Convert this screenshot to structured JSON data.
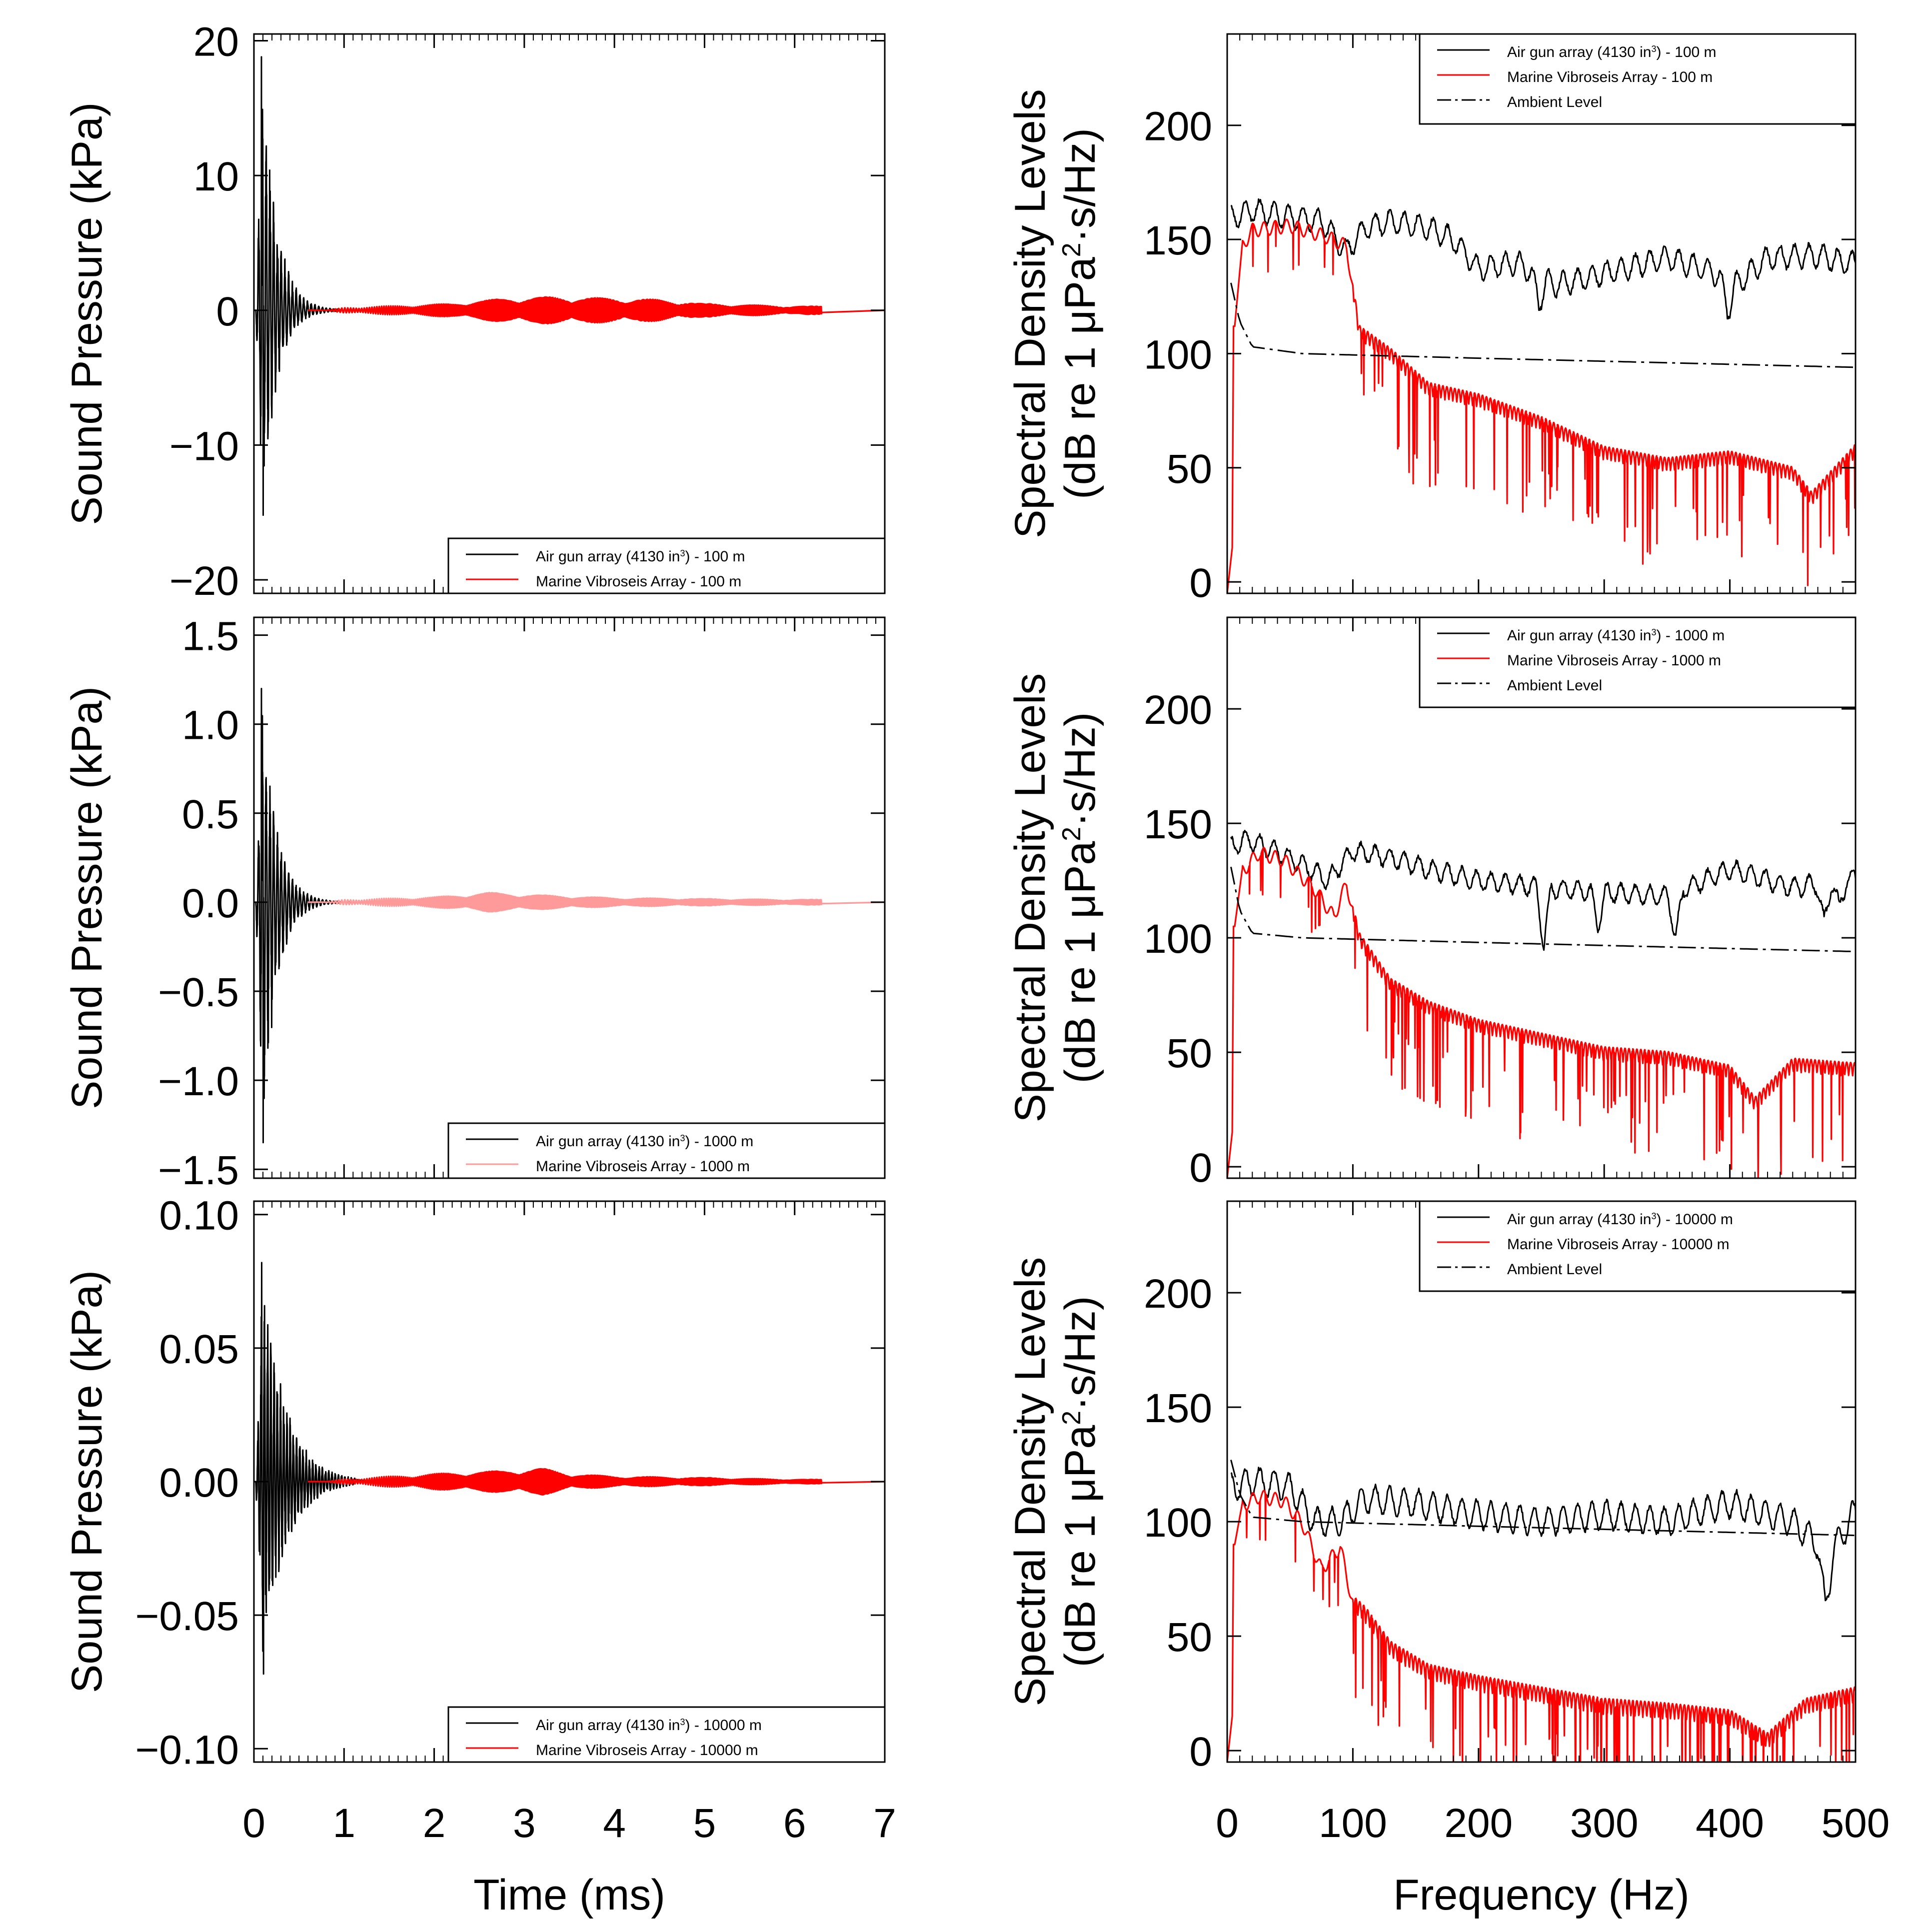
{
  "colors": {
    "airgun": "#000000",
    "vibroseis": "#ff0000",
    "vibroseis_light": "#ff9a9a",
    "ambient": "#000000",
    "frame": "#000000"
  },
  "chart_data": [
    {
      "type": "line",
      "id": "time-100m",
      "xlabel": "",
      "ylabel": "Sound Pressure (kPa)",
      "xlim": [
        0,
        7
      ],
      "ylim": [
        -21,
        20.5
      ],
      "yticks": [
        20,
        10,
        0,
        -10,
        -20
      ],
      "ytick_labels": [
        "20",
        "10",
        "0",
        "−10",
        "−20"
      ],
      "xticks": [
        0,
        1,
        2,
        3,
        4,
        5,
        6,
        7
      ],
      "xtick_labels": [],
      "legend_position": "bottom-right",
      "series": [
        {
          "name": "Air gun array (4130 in³) -   100 m",
          "label_main": "Air gun array (4130 in",
          "label_sup": "3",
          "label_tail": ") -   100 m",
          "color": "#000000",
          "kind": "airgun",
          "peak": 18.8,
          "trough": -15.2
        },
        {
          "name": "Marine Vibroseis Array -   100 m",
          "label_main": "Marine Vibroseis Array -   100 m",
          "color": "#ff0000",
          "kind": "vibro",
          "envelope": [
            [
              1.0,
              0.2
            ],
            [
              2.2,
              0.5
            ],
            [
              2.8,
              0.9
            ],
            [
              3.3,
              1.0
            ],
            [
              4.0,
              0.9
            ],
            [
              4.5,
              0.8
            ],
            [
              5.0,
              0.5
            ],
            [
              6.0,
              0.3
            ]
          ]
        }
      ]
    },
    {
      "type": "line",
      "id": "freq-100m",
      "xlabel": "",
      "ylabel_line1": "Spectral Density Levels",
      "ylabel_line2": "(dB re 1 μPa²·s/Hz)",
      "ylabel_main": "(dB re 1 μPa",
      "ylabel_sup": "2",
      "ylabel_tail": "·s/Hz)",
      "xlim": [
        0,
        500
      ],
      "ylim": [
        -5,
        240
      ],
      "yticks": [
        200,
        150,
        100,
        50,
        0
      ],
      "xticks": [
        0,
        100,
        200,
        300,
        400,
        500
      ],
      "xtick_labels": [],
      "legend_position": "top-right",
      "series": [
        {
          "name": "Air gun array (4130 in³) -   100 m",
          "label_main": "Air gun array (4130 in",
          "label_sup": "3",
          "label_tail": ") -   100 m",
          "color": "#000000",
          "kind": "airgun",
          "x": [
            5,
            20,
            50,
            75,
            95,
            110,
            130,
            160,
            180,
            200,
            230,
            260,
            300,
            350,
            390,
            400,
            430,
            470,
            500
          ],
          "y": [
            160,
            163,
            160,
            158,
            145,
            155,
            158,
            155,
            150,
            137,
            140,
            130,
            135,
            142,
            135,
            128,
            142,
            143,
            139
          ],
          "ripple": 5,
          "notches": [
            [
              248,
              12
            ],
            [
              398,
              10
            ]
          ]
        },
        {
          "name": "Marine Vibroseis Array -   100 m",
          "label_main": "Marine Vibroseis Array -   100 m",
          "color": "#ff0000",
          "kind": "vibro",
          "x": [
            6,
            12,
            20,
            50,
            80,
            95,
            105,
            130,
            160,
            200,
            250,
            300,
            350,
            400,
            450,
            465,
            500
          ],
          "y": [
            112,
            148,
            155,
            157,
            152,
            148,
            110,
            100,
            85,
            80,
            70,
            57,
            52,
            55,
            48,
            37,
            58
          ],
          "ripple": 12
        },
        {
          "name": "Ambient Level",
          "label_main": "Ambient Level",
          "color": "#000000",
          "kind": "ambient",
          "x": [
            3,
            10,
            20,
            60,
            200,
            350,
            500
          ],
          "y": [
            131,
            114,
            103,
            100,
            98,
            96,
            94
          ]
        }
      ]
    },
    {
      "type": "line",
      "id": "time-1000m",
      "xlabel": "",
      "ylabel": "Sound Pressure (kPa)",
      "xlim": [
        0,
        7
      ],
      "ylim": [
        -1.55,
        1.6
      ],
      "yticks": [
        1.5,
        1.0,
        0.5,
        0.0,
        -0.5,
        -1.0,
        -1.5
      ],
      "ytick_labels": [
        "1.5",
        "1.0",
        "0.5",
        "0.0",
        "−0.5",
        "−1.0",
        "−1.5"
      ],
      "xticks": [
        0,
        1,
        2,
        3,
        4,
        5,
        6,
        7
      ],
      "xtick_labels": [],
      "legend_position": "bottom-right",
      "series": [
        {
          "name": "Air gun array (4130 in³) -  1000 m",
          "label_main": "Air gun array (4130 in",
          "label_sup": "3",
          "label_tail": ") -  1000 m",
          "color": "#000000",
          "kind": "airgun",
          "peak": 1.2,
          "trough": -1.35
        },
        {
          "name": "Marine Vibroseis Array -  1000 m",
          "label_main": "Marine Vibroseis Array -  1000 m",
          "color": "#ff9a9a",
          "kind": "vibro",
          "envelope": [
            [
              1.0,
              0.015
            ],
            [
              2.0,
              0.03
            ],
            [
              2.6,
              0.055
            ],
            [
              3.2,
              0.04
            ],
            [
              4.0,
              0.025
            ],
            [
              5.0,
              0.02
            ],
            [
              6.0,
              0.015
            ]
          ]
        }
      ]
    },
    {
      "type": "line",
      "id": "freq-1000m",
      "xlabel": "",
      "ylabel_line1": "Spectral Density Levels",
      "ylabel_line2": "(dB re 1 μPa²·s/Hz)",
      "ylabel_main": "(dB re 1 μPa",
      "ylabel_sup": "2",
      "ylabel_tail": "·s/Hz)",
      "xlim": [
        0,
        500
      ],
      "ylim": [
        -5,
        240
      ],
      "yticks": [
        200,
        150,
        100,
        50,
        0
      ],
      "xticks": [
        0,
        100,
        200,
        300,
        400,
        500
      ],
      "xtick_labels": [],
      "legend_position": "top-right",
      "series": [
        {
          "name": "Air gun array (4130 in³) -  1000 m",
          "label_main": "Air gun array (4130 in",
          "label_sup": "3",
          "label_tail": ") -  1000 m",
          "color": "#000000",
          "kind": "airgun",
          "x": [
            5,
            15,
            30,
            60,
            80,
            100,
            130,
            160,
            200,
            250,
            300,
            350,
            400,
            450,
            500
          ],
          "y": [
            140,
            143,
            140,
            132,
            125,
            138,
            135,
            130,
            125,
            122,
            120,
            118,
            130,
            122,
            126
          ],
          "ripple": 4,
          "notches": [
            [
              252,
              25
            ],
            [
              295,
              15
            ],
            [
              357,
              20
            ],
            [
              475,
              18
            ],
            [
              487,
              12
            ]
          ]
        },
        {
          "name": "Marine Vibroseis Array -  1000 m",
          "label_main": "Marine Vibroseis Array -  1000 m",
          "color": "#ff0000",
          "kind": "vibro",
          "x": [
            6,
            12,
            25,
            45,
            70,
            85,
            95,
            105,
            130,
            160,
            200,
            250,
            300,
            350,
            400,
            420,
            450,
            500
          ],
          "y": [
            105,
            130,
            138,
            135,
            122,
            110,
            125,
            100,
            80,
            70,
            62,
            56,
            50,
            48,
            42,
            28,
            45,
            43
          ],
          "ripple": 12
        },
        {
          "name": "Ambient Level",
          "label_main": "Ambient Level",
          "color": "#000000",
          "kind": "ambient",
          "x": [
            3,
            10,
            20,
            60,
            200,
            350,
            500
          ],
          "y": [
            131,
            112,
            102,
            100,
            98,
            96,
            94
          ]
        }
      ]
    },
    {
      "type": "line",
      "id": "time-10000m",
      "xlabel": "Time (ms)",
      "ylabel": "Sound Pressure (kPa)",
      "xlim": [
        0,
        7
      ],
      "ylim": [
        -0.105,
        0.105
      ],
      "yticks": [
        0.1,
        0.05,
        0.0,
        -0.05,
        -0.1
      ],
      "ytick_labels": [
        "0.10",
        "0.05",
        "0.00",
        "−0.05",
        "−0.10"
      ],
      "xticks": [
        0,
        1,
        2,
        3,
        4,
        5,
        6,
        7
      ],
      "xtick_labels": [
        "0",
        "1",
        "2",
        "3",
        "4",
        "5",
        "6",
        "7"
      ],
      "legend_position": "bottom-right",
      "series": [
        {
          "name": "Air gun array (4130 in³) - 10000 m",
          "label_main": "Air gun array (4130 in",
          "label_sup": "3",
          "label_tail": ") - 10000 m",
          "color": "#000000",
          "kind": "airgun_long",
          "peak": 0.082,
          "trough": -0.072
        },
        {
          "name": "Marine Vibroseis Array - 10000 m",
          "label_main": "Marine Vibroseis Array - 10000 m",
          "color": "#ff0000",
          "kind": "vibro",
          "envelope": [
            [
              1.0,
              0.001
            ],
            [
              2.0,
              0.003
            ],
            [
              2.7,
              0.004
            ],
            [
              3.2,
              0.005
            ],
            [
              3.5,
              0.003
            ],
            [
              4.0,
              0.002
            ],
            [
              5.0,
              0.0015
            ],
            [
              6.0,
              0.0008
            ]
          ]
        }
      ]
    },
    {
      "type": "line",
      "id": "freq-10000m",
      "xlabel": "Frequency (Hz)",
      "ylabel_line1": "Spectral Density Levels",
      "ylabel_line2": "(dB re 1 μPa²·s/Hz)",
      "ylabel_main": "(dB re 1 μPa",
      "ylabel_sup": "2",
      "ylabel_tail": "·s/Hz)",
      "xlim": [
        0,
        500
      ],
      "ylim": [
        -5,
        240
      ],
      "yticks": [
        200,
        150,
        100,
        50,
        0
      ],
      "xticks": [
        0,
        100,
        200,
        300,
        400,
        500
      ],
      "xtick_labels": [
        "0",
        "100",
        "200",
        "300",
        "400",
        "500"
      ],
      "legend_position": "top-right",
      "series": [
        {
          "name": "Air gun array (4130 in³) - 10000 m",
          "label_main": "Air gun array (4130 in",
          "label_sup": "3",
          "label_tail": ") - 10000 m",
          "color": "#000000",
          "kind": "airgun",
          "x": [
            5,
            20,
            50,
            70,
            90,
            110,
            150,
            200,
            250,
            300,
            350,
            400,
            450,
            480,
            500
          ],
          "y": [
            115,
            118,
            115,
            100,
            100,
            110,
            108,
            103,
            100,
            103,
            100,
            108,
            100,
            85,
            105
          ],
          "ripple": 6,
          "notches": [
            [
              476,
              25
            ]
          ]
        },
        {
          "name": "Marine Vibroseis Array - 10000 m",
          "label_main": "Marine Vibroseis Array - 10000 m",
          "color": "#ff0000",
          "kind": "vibro",
          "x": [
            6,
            12,
            25,
            45,
            60,
            75,
            90,
            100,
            110,
            130,
            160,
            200,
            250,
            300,
            350,
            400,
            430,
            460,
            500
          ],
          "y": [
            90,
            108,
            112,
            110,
            100,
            80,
            90,
            65,
            60,
            45,
            35,
            30,
            25,
            20,
            18,
            15,
            5,
            20,
            25
          ],
          "ripple": 14
        },
        {
          "name": "Ambient Level",
          "label_main": "Ambient Level",
          "color": "#000000",
          "kind": "ambient",
          "x": [
            3,
            10,
            20,
            60,
            200,
            350,
            500
          ],
          "y": [
            127,
            112,
            102,
            100,
            98,
            96,
            94
          ]
        }
      ]
    }
  ]
}
